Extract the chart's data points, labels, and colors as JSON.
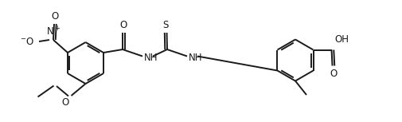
{
  "bg_color": "#ffffff",
  "line_color": "#1a1a1a",
  "line_width": 1.4,
  "figsize": [
    5.06,
    1.53
  ],
  "dpi": 100,
  "xlim": [
    0,
    10.12
  ],
  "ylim": [
    0,
    3.06
  ]
}
